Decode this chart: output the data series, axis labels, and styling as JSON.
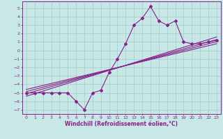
{
  "bg_color": "#c8e8e8",
  "grid_color": "#a8d0d0",
  "line_color": "#882288",
  "xlabel": "Windchill (Refroidissement éolien,°C)",
  "xlim": [
    -0.5,
    23.5
  ],
  "ylim": [
    -7.5,
    5.8
  ],
  "xticks": [
    0,
    1,
    2,
    3,
    4,
    5,
    6,
    7,
    8,
    9,
    10,
    11,
    12,
    13,
    14,
    15,
    16,
    17,
    18,
    19,
    20,
    21,
    22,
    23
  ],
  "yticks": [
    -7,
    -6,
    -5,
    -4,
    -3,
    -2,
    -1,
    0,
    1,
    2,
    3,
    4,
    5
  ],
  "main_x": [
    0,
    1,
    2,
    3,
    4,
    5,
    6,
    7,
    8,
    9,
    10,
    11,
    12,
    13,
    14,
    15,
    16,
    17,
    18,
    19,
    20,
    21,
    22,
    23
  ],
  "main_y": [
    -5,
    -5,
    -5,
    -5,
    -5,
    -5,
    -6,
    -7,
    -5,
    -4.7,
    -2.6,
    -1,
    0.8,
    3,
    3.8,
    5.2,
    3.5,
    3,
    3.5,
    1,
    0.8,
    0.8,
    1,
    1.2
  ],
  "reg_lines": [
    {
      "x": [
        0,
        23
      ],
      "y": [
        -5.4,
        1.6
      ]
    },
    {
      "x": [
        0,
        23
      ],
      "y": [
        -5.1,
        1.3
      ]
    },
    {
      "x": [
        0,
        23
      ],
      "y": [
        -4.85,
        1.05
      ]
    },
    {
      "x": [
        0,
        23
      ],
      "y": [
        -4.6,
        0.8
      ]
    }
  ],
  "tick_fontsize": 4.5,
  "xlabel_fontsize": 5.5
}
